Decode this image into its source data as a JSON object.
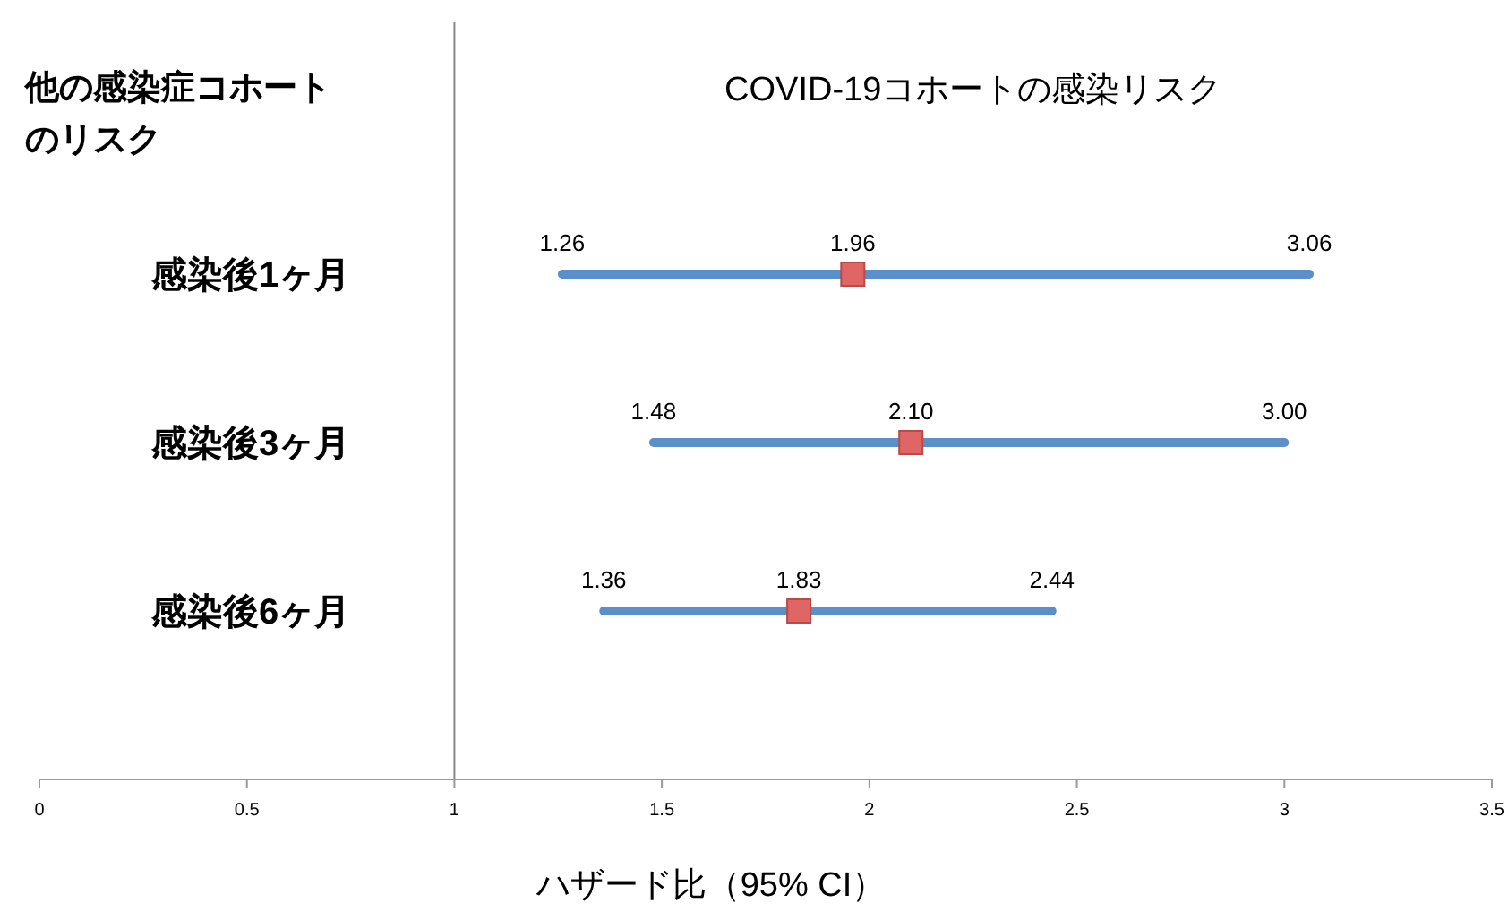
{
  "chart_data": {
    "type": "scatter",
    "orientation": "horizontal",
    "title": "COVID-19コホートの感染リスク",
    "ylabel": "他の感染症コホートのリスク",
    "xlabel": "ハザード比（95% CI）",
    "categories": [
      "感染後1ヶ月",
      "感染後3ヶ月",
      "感染後6ヶ月"
    ],
    "values": [
      1.96,
      2.1,
      1.83
    ],
    "value_labels": [
      "1.96",
      "2.10",
      "1.83"
    ],
    "errors": [
      [
        1.26,
        3.06
      ],
      [
        1.48,
        3.0
      ],
      [
        1.36,
        2.44
      ]
    ],
    "color": "#e06666",
    "marker": "square",
    "xlim": [
      0,
      3.5
    ],
    "xticks": [
      0,
      0.5,
      1,
      1.5,
      2,
      2.5,
      3,
      3.5
    ],
    "ref_lines": [
      {
        "axis": "x",
        "value": 1,
        "color": "#888888"
      }
    ],
    "annotations": [
      {
        "text": "1.26",
        "x": 1.26,
        "y": "感染後1ヶ月"
      },
      {
        "text": "3.06",
        "x": 3.06,
        "y": "感染後1ヶ月"
      },
      {
        "text": "1.48",
        "x": 1.48,
        "y": "感染後3ヶ月"
      },
      {
        "text": "3.00",
        "x": 3.0,
        "y": "感染後3ヶ月"
      },
      {
        "text": "1.36",
        "x": 1.36,
        "y": "感染後6ヶ月"
      },
      {
        "text": "2.44",
        "x": 2.44,
        "y": "感染後6ヶ月"
      }
    ]
  }
}
